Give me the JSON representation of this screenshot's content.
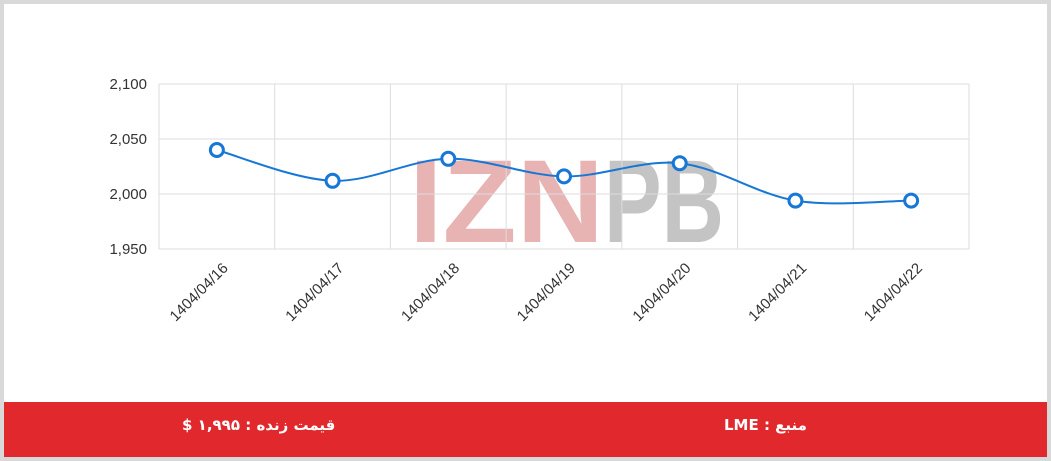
{
  "chart_data": {
    "type": "line",
    "categories": [
      "1404/04/16",
      "1404/04/17",
      "1404/04/18",
      "1404/04/19",
      "1404/04/20",
      "1404/04/21",
      "1404/04/22"
    ],
    "series": [
      {
        "values": [
          2040,
          2012,
          2032,
          2016,
          2028,
          1994,
          1994
        ]
      }
    ],
    "yticks": [
      "1,950",
      "2,000",
      "2,050",
      "2,100"
    ],
    "ylim": [
      1950,
      2100
    ],
    "grid": true,
    "legend": "none",
    "watermark": "IZNPB",
    "colors": {
      "line": "#1677d6",
      "grid": "#dddddd",
      "watermark_red": "#e8b3b3",
      "watermark_gray": "#c4c4c4"
    }
  },
  "footer": {
    "live_price": "قیمت زنده : ۱,۹۹۵ $",
    "source": "منبع : LME",
    "color": "#e0282d"
  }
}
